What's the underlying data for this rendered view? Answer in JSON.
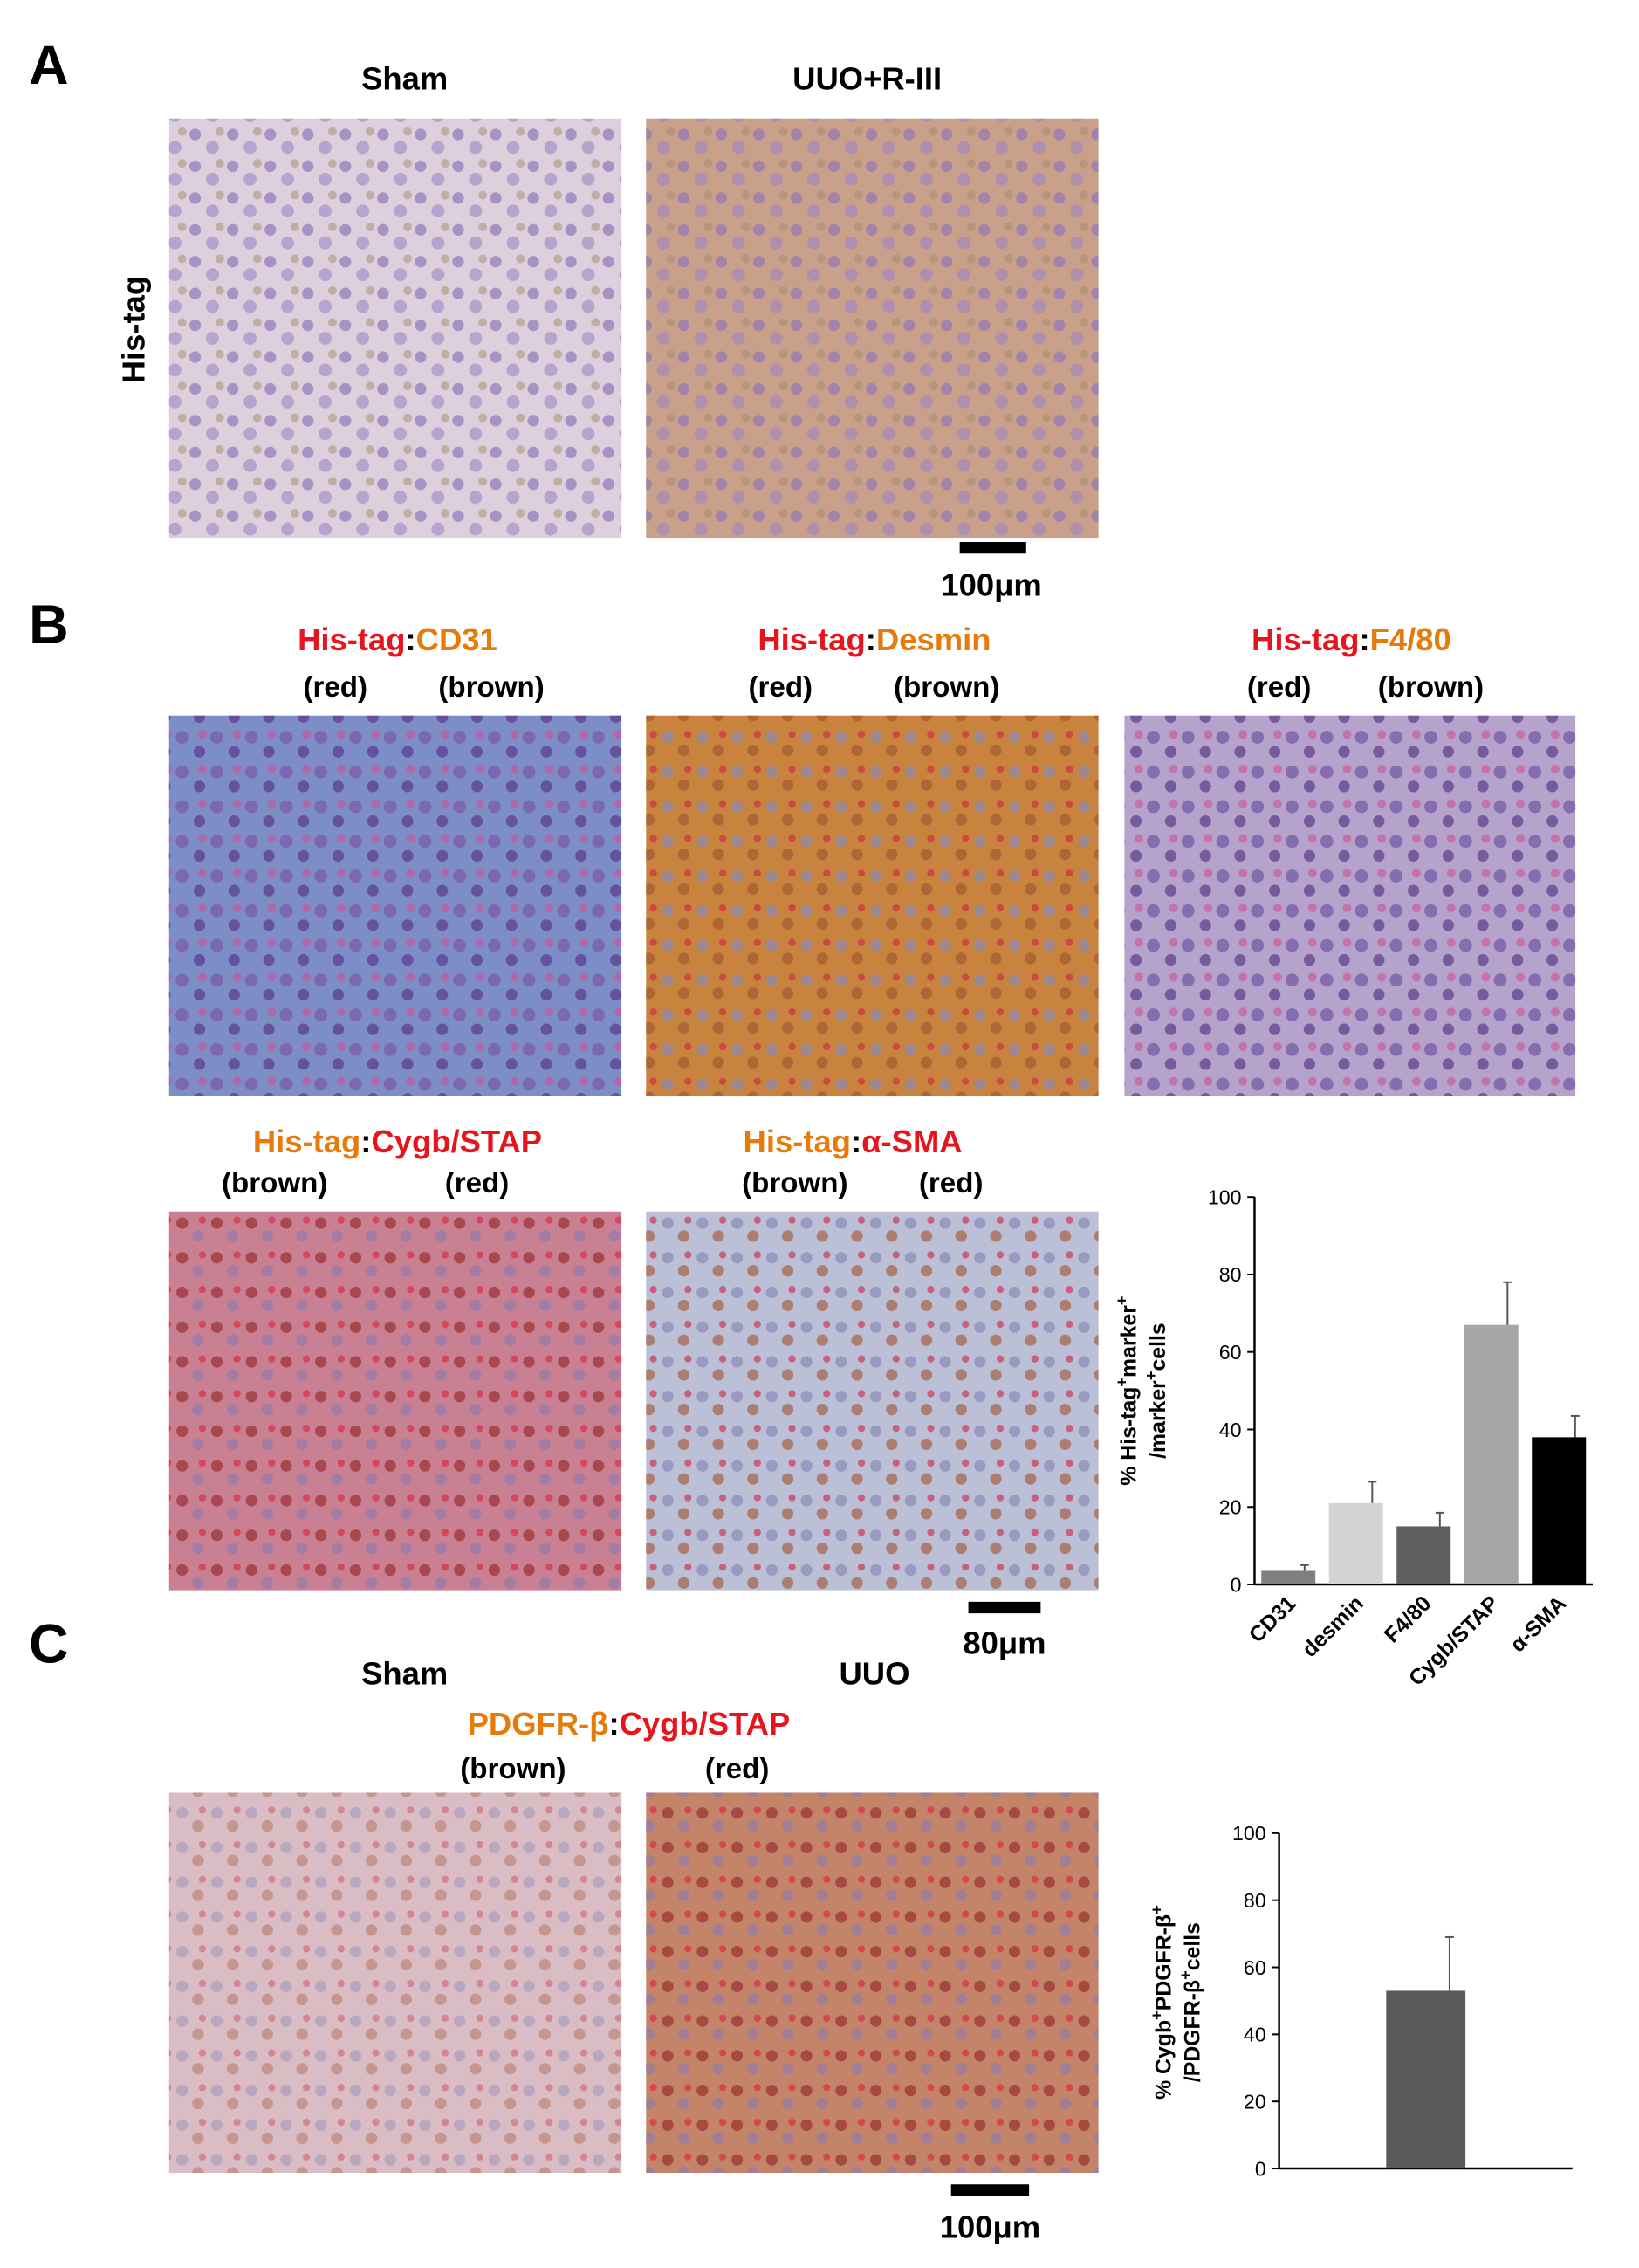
{
  "panel_a": {
    "letter": "A",
    "sham": "Sham",
    "treated": "UUO+R-III",
    "row_label": "His-tag",
    "scale_bar": "100μm"
  },
  "panel_b": {
    "letter": "B",
    "scale_bar": "80μm",
    "stains": [
      {
        "parts": [
          {
            "text": "His-tag",
            "color": "#e8141c"
          },
          {
            "text": ":",
            "color": "#000000"
          },
          {
            "text": "CD31",
            "color": "#e67a0a"
          }
        ],
        "notes": [
          "(red)",
          "(brown)"
        ]
      },
      {
        "parts": [
          {
            "text": "His-tag",
            "color": "#e8141c"
          },
          {
            "text": ":",
            "color": "#000000"
          },
          {
            "text": "Desmin",
            "color": "#e67a0a"
          }
        ],
        "notes": [
          "(red)",
          "(brown)"
        ]
      },
      {
        "parts": [
          {
            "text": "His-tag",
            "color": "#e8141c"
          },
          {
            "text": ":",
            "color": "#000000"
          },
          {
            "text": "F4/80",
            "color": "#e67a0a"
          }
        ],
        "notes": [
          "(red)",
          "(brown)"
        ]
      },
      {
        "parts": [
          {
            "text": "His-tag",
            "color": "#e67a0a"
          },
          {
            "text": ":",
            "color": "#000000"
          },
          {
            "text": "Cygb/STAP",
            "color": "#e8141c"
          }
        ],
        "notes": [
          "(brown)",
          "(red)"
        ]
      },
      {
        "parts": [
          {
            "text": "His-tag",
            "color": "#e67a0a"
          },
          {
            "text": ":",
            "color": "#000000"
          },
          {
            "text": "α-SMA",
            "color": "#e8141c"
          }
        ],
        "notes": [
          "(brown)",
          "(red)"
        ]
      }
    ]
  },
  "panel_c": {
    "letter": "C",
    "sham": "Sham",
    "treated": "UUO",
    "scale_bar": "100μm",
    "stain": {
      "parts": [
        {
          "text": "PDGFR-β",
          "color": "#e67a0a"
        },
        {
          "text": ":",
          "color": "#000000"
        },
        {
          "text": "Cygb/STAP",
          "color": "#e8141c"
        }
      ],
      "notes": [
        "(brown)",
        "(red)"
      ]
    }
  },
  "chart_data": [
    {
      "type": "bar",
      "y_label": [
        [
          {
            "text": "% His-tag"
          },
          {
            "text": "+",
            "sup": true
          },
          {
            "text": "marker"
          },
          {
            "text": "+",
            "sup": true
          }
        ],
        [
          {
            "text": "/marker"
          },
          {
            "text": "+",
            "sup": true
          },
          {
            "text": "cells"
          }
        ]
      ],
      "categories": [
        "CD31",
        "desmin",
        "F4/80",
        "Cygb/STAP",
        "α-SMA"
      ],
      "values": [
        3.5,
        21,
        15,
        67,
        38
      ],
      "errors": [
        1.5,
        5.5,
        3.5,
        11,
        5.5
      ],
      "colors": [
        "#7f7f7f",
        "#d4d4d4",
        "#5f5f5f",
        "#a6a6a6",
        "#000000"
      ],
      "ylim": [
        0,
        100
      ],
      "yticks": [
        0,
        20,
        40,
        60,
        80,
        100
      ]
    },
    {
      "type": "bar",
      "y_label": [
        [
          {
            "text": "% Cygb"
          },
          {
            "text": "+",
            "sup": true
          },
          {
            "text": "PDGFR-β"
          },
          {
            "text": "+",
            "sup": true
          }
        ],
        [
          {
            "text": "/PDGFR-β"
          },
          {
            "text": "+",
            "sup": true
          },
          {
            "text": "cells"
          }
        ]
      ],
      "categories": [
        null
      ],
      "values": [
        53
      ],
      "errors": [
        16
      ],
      "colors": [
        "#5a5a5a"
      ],
      "ylim": [
        0,
        100
      ],
      "yticks": [
        0,
        20,
        40,
        60,
        80,
        100
      ]
    }
  ]
}
